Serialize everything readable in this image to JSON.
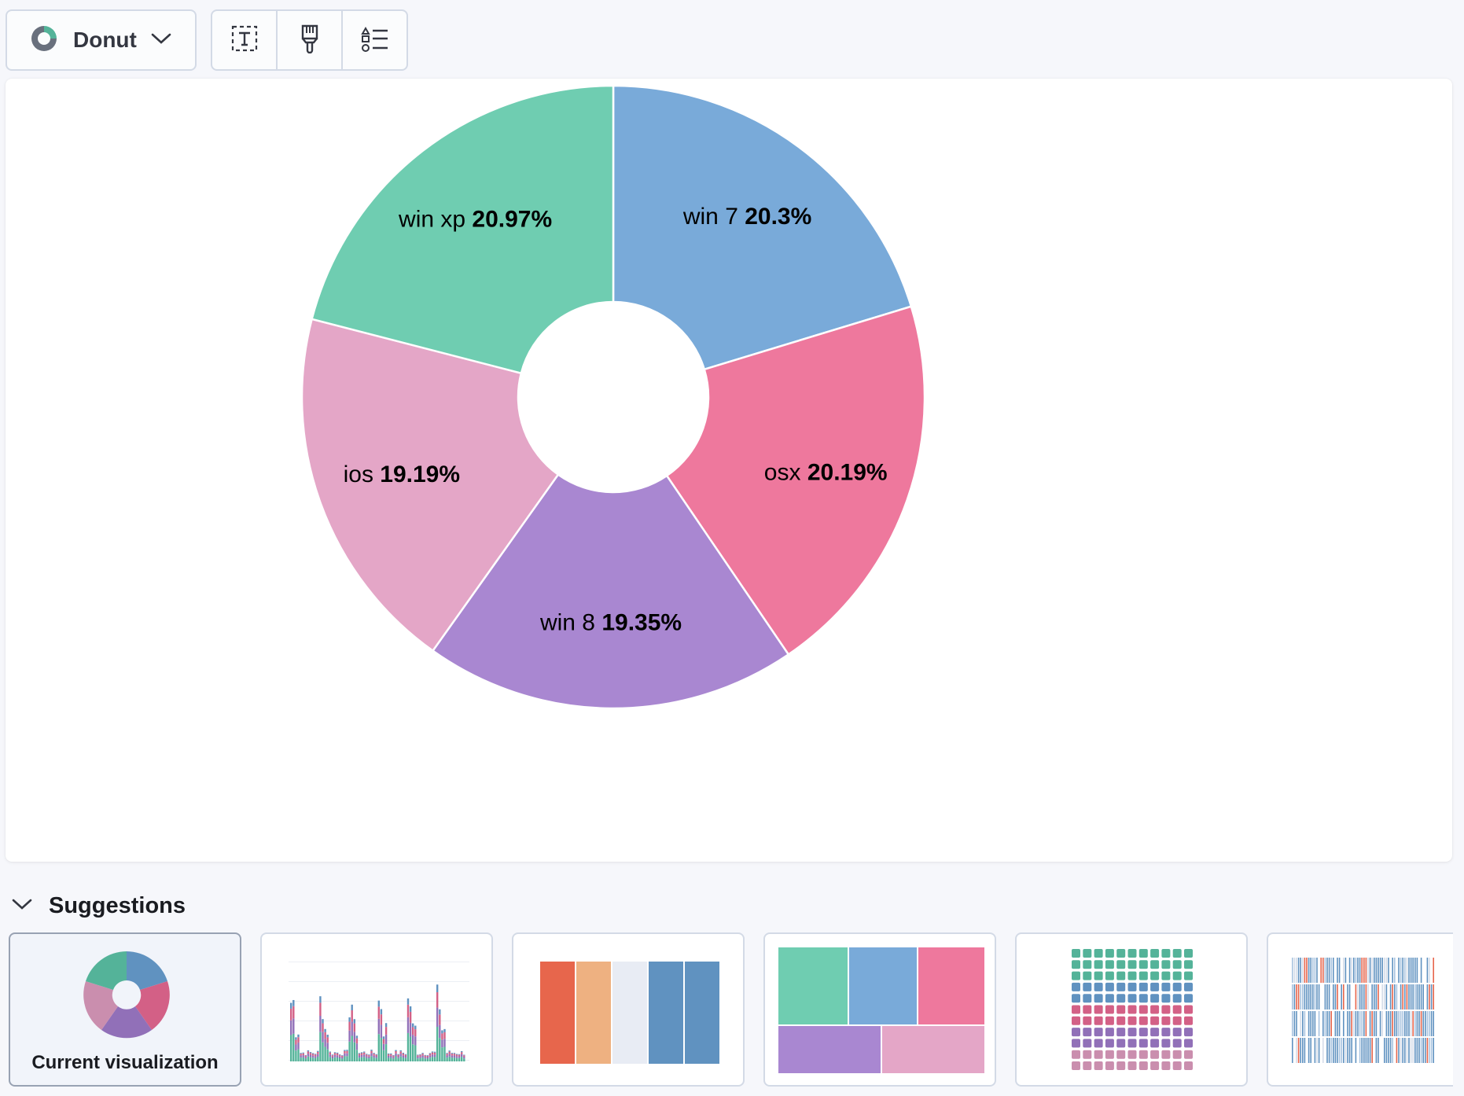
{
  "toolbar": {
    "chart_type_label": "Donut",
    "chart_type_icon": "donut-chart-icon",
    "buttons": [
      {
        "icon": "text-label-icon"
      },
      {
        "icon": "paint-brush-icon"
      },
      {
        "icon": "legend-list-icon"
      }
    ]
  },
  "colors": {
    "win_xp": "#6fcdb1",
    "win_7": "#79aad9",
    "osx": "#ee789d",
    "win_8": "#a987d1",
    "ios": "#e4a6c7"
  },
  "chart_data": {
    "type": "pie",
    "variant": "donut",
    "slices": [
      {
        "label": "win 7",
        "pct_text": "20.3%",
        "value": 20.3,
        "color": "#79aad9"
      },
      {
        "label": "osx",
        "pct_text": "20.19%",
        "value": 20.19,
        "color": "#ee789d"
      },
      {
        "label": "win 8",
        "pct_text": "19.35%",
        "value": 19.35,
        "color": "#a987d1"
      },
      {
        "label": "ios",
        "pct_text": "19.19%",
        "value": 19.19,
        "color": "#e4a6c7"
      },
      {
        "label": "win xp",
        "pct_text": "20.97%",
        "value": 20.97,
        "color": "#6fcdb1"
      }
    ]
  },
  "suggestions": {
    "title": "Suggestions",
    "current_label": "Current visualization",
    "cards": [
      {
        "kind": "donut-thumbnail"
      },
      {
        "kind": "bar-thumbnail"
      },
      {
        "kind": "stacked-column-thumbnail"
      },
      {
        "kind": "treemap-thumbnail"
      },
      {
        "kind": "waffle-thumbnail"
      },
      {
        "kind": "heatmap-thumbnail"
      }
    ]
  }
}
